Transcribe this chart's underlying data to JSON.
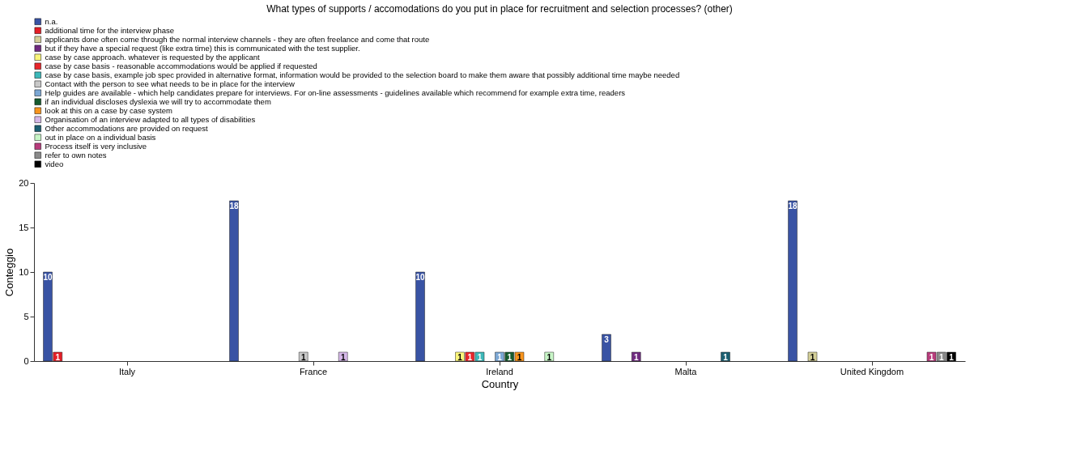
{
  "chart_data": {
    "type": "bar",
    "title": "What types of supports / accomodations do you put in place for recruitment and selection processes?  (other)",
    "xlabel": "Country",
    "ylabel": "Conteggio",
    "categories": [
      "Italy",
      "France",
      "Ireland",
      "Malta",
      "United Kingdom"
    ],
    "ylim": [
      0,
      20
    ],
    "yticks": [
      0,
      5,
      10,
      15,
      20
    ],
    "grid": false,
    "legend": "top",
    "data_labels": true,
    "series": [
      {
        "name": "n.a.",
        "color": "#3953a4",
        "values": [
          10,
          18,
          10,
          3,
          18
        ]
      },
      {
        "name": "additional time for the interview phase",
        "color": "#e41e26",
        "values": [
          1,
          null,
          null,
          null,
          null
        ]
      },
      {
        "name": "applicants done often come through the normal interview channels - they are often freelance and come that route",
        "color": "#d3ce97",
        "values": [
          null,
          null,
          null,
          null,
          1
        ]
      },
      {
        "name": "but if they have a special request (like extra time) this is communicated with the test supplier.",
        "color": "#6f2a7f",
        "values": [
          null,
          null,
          null,
          1,
          null
        ]
      },
      {
        "name": "case by case approach. whatever is requested by the applicant",
        "color": "#fbf67a",
        "values": [
          null,
          null,
          1,
          null,
          null
        ]
      },
      {
        "name": "case by case basis - reasonable accommodations would be applied if requested",
        "color": "#e8262b",
        "values": [
          null,
          null,
          1,
          null,
          null
        ]
      },
      {
        "name": "case by case basis, example job spec provided in alternative format, information would be provided to the selection board to make them aware that possibly additional time maybe needed",
        "color": "#3cb8b9",
        "values": [
          null,
          null,
          1,
          null,
          null
        ]
      },
      {
        "name": "Contact with the person to see what needs to be in place for the interview",
        "color": "#c8c8c8",
        "values": [
          null,
          1,
          null,
          null,
          null
        ]
      },
      {
        "name": "Help guides are available - which help candidates prepare for interviews.  For on-line assessments - guidelines available which recommend for example extra time, readers",
        "color": "#7ba7d4",
        "values": [
          null,
          null,
          1,
          null,
          null
        ]
      },
      {
        "name": "if an individual discloses dyslexia we will try to accommodate them",
        "color": "#165a2e",
        "values": [
          null,
          null,
          1,
          null,
          null
        ]
      },
      {
        "name": "look at this on a case by case system",
        "color": "#f7941d",
        "values": [
          null,
          null,
          1,
          null,
          null
        ]
      },
      {
        "name": "Organisation of an interview adapted to all types of disabilities",
        "color": "#d5b7e8",
        "values": [
          null,
          1,
          null,
          null,
          null
        ]
      },
      {
        "name": "Other accommodations are provided on request",
        "color": "#1b5e70",
        "values": [
          null,
          null,
          null,
          1,
          null
        ]
      },
      {
        "name": "out in place on a individual basis",
        "color": "#c7f5c6",
        "values": [
          null,
          null,
          1,
          null,
          null
        ]
      },
      {
        "name": "Process itself is very inclusive",
        "color": "#b83c7c",
        "values": [
          null,
          null,
          null,
          null,
          1
        ]
      },
      {
        "name": "refer to own notes",
        "color": "#8a8a8a",
        "values": [
          null,
          null,
          null,
          null,
          1
        ]
      },
      {
        "name": "video",
        "color": "#000000",
        "values": [
          null,
          null,
          null,
          null,
          1
        ]
      }
    ]
  }
}
